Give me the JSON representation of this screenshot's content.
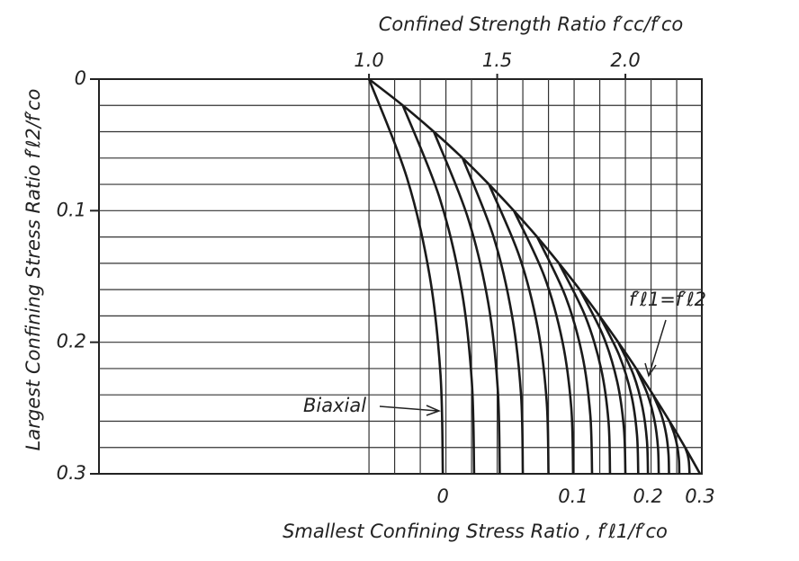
{
  "chart_data": {
    "type": "line",
    "title": "Confined Strength Ratio  f′cc/f′co",
    "ylabel": "Largest Confining Stress Ratio  f′ℓ2/f′co",
    "x2label": "Smallest Confining Stress Ratio , f′ℓ1/f′co",
    "xlim": [
      -0.053,
      2.298
    ],
    "ylim": [
      0,
      0.3
    ],
    "xticks": [
      {
        "value": 1.0,
        "label": "1.0"
      },
      {
        "value": 1.5,
        "label": "1.5"
      },
      {
        "value": 2.0,
        "label": "2.0"
      }
    ],
    "xgrid": [
      1.0,
      1.1,
      1.2,
      1.3,
      1.4,
      1.5,
      1.6,
      1.7,
      1.8,
      1.9,
      2.0,
      2.1,
      2.2
    ],
    "yticks": [
      0,
      0.1,
      0.2,
      0.3
    ],
    "ygrid": [
      0.02,
      0.04,
      0.06,
      0.08,
      0.1,
      0.12,
      0.14,
      0.16,
      0.18,
      0.2,
      0.22,
      0.24,
      0.26,
      0.28
    ],
    "x2ticks": [
      0,
      0.1,
      0.2,
      0.3
    ],
    "grid": true,
    "color": "#1a1a1a",
    "curves": [
      {
        "fl1": 0,
        "x": [
          1.0,
          1.148,
          1.237,
          1.279,
          1.288
        ],
        "y": [
          0,
          0.075,
          0.15,
          0.225,
          0.3
        ]
      },
      {
        "fl1": 0.02,
        "x": [
          1.132,
          1.275,
          1.361,
          1.401,
          1.41
        ],
        "y": [
          0.02,
          0.09,
          0.16,
          0.23,
          0.3
        ]
      },
      {
        "fl1": 0.04,
        "x": [
          1.253,
          1.385,
          1.465,
          1.502,
          1.51
        ],
        "y": [
          0.04,
          0.105,
          0.17,
          0.235,
          0.3
        ]
      },
      {
        "fl1": 0.06,
        "x": [
          1.365,
          1.486,
          1.558,
          1.593,
          1.6
        ],
        "y": [
          0.06,
          0.12,
          0.18,
          0.24,
          0.3
        ]
      },
      {
        "fl1": 0.08,
        "x": [
          1.468,
          1.587,
          1.659,
          1.693,
          1.7
        ],
        "y": [
          0.08,
          0.135,
          0.19,
          0.245,
          0.3
        ]
      },
      {
        "fl1": 0.1,
        "x": [
          1.565,
          1.684,
          1.755,
          1.789,
          1.796
        ],
        "y": [
          0.1,
          0.15,
          0.2,
          0.25,
          0.3
        ]
      },
      {
        "fl1": 0.12,
        "x": [
          1.656,
          1.766,
          1.832,
          1.863,
          1.87
        ],
        "y": [
          0.12,
          0.165,
          0.21,
          0.255,
          0.3
        ]
      },
      {
        "fl1": 0.14,
        "x": [
          1.741,
          1.843,
          1.905,
          1.934,
          1.94
        ],
        "y": [
          0.14,
          0.18,
          0.22,
          0.26,
          0.3
        ]
      },
      {
        "fl1": 0.16,
        "x": [
          1.822,
          1.913,
          1.968,
          1.994,
          2.0
        ],
        "y": [
          0.16,
          0.195,
          0.23,
          0.265,
          0.3
        ]
      },
      {
        "fl1": 0.18,
        "x": [
          1.899,
          1.976,
          2.023,
          2.045,
          2.05
        ],
        "y": [
          0.18,
          0.21,
          0.24,
          0.27,
          0.3
        ]
      },
      {
        "fl1": 0.2,
        "x": [
          1.972,
          2.032,
          2.067,
          2.084,
          2.088
        ],
        "y": [
          0.2,
          0.225,
          0.25,
          0.275,
          0.3
        ]
      },
      {
        "fl1": 0.22,
        "x": [
          2.042,
          2.087,
          2.114,
          2.127,
          2.13
        ],
        "y": [
          0.22,
          0.24,
          0.26,
          0.28,
          0.3
        ]
      },
      {
        "fl1": 0.24,
        "x": [
          2.108,
          2.14,
          2.159,
          2.168,
          2.17
        ],
        "y": [
          0.24,
          0.255,
          0.27,
          0.285,
          0.3
        ]
      },
      {
        "fl1": 0.26,
        "x": [
          2.172,
          2.191,
          2.203,
          2.209,
          2.21
        ],
        "y": [
          0.26,
          0.27,
          0.28,
          0.29,
          0.3
        ]
      },
      {
        "fl1": 0.28,
        "x": [
          2.233,
          2.242,
          2.247,
          2.249,
          2.25
        ],
        "y": [
          0.28,
          0.285,
          0.29,
          0.295,
          0.3
        ]
      },
      {
        "fl1": 0.3,
        "x": [
          2.291
        ],
        "y": [
          0.3
        ]
      }
    ],
    "envelope": {
      "x": [
        1.0,
        1.132,
        1.253,
        1.365,
        1.468,
        1.565,
        1.656,
        1.741,
        1.822,
        1.899,
        1.972,
        2.042,
        2.108,
        2.172,
        2.233,
        2.291
      ],
      "y": [
        0,
        0.02,
        0.04,
        0.06,
        0.08,
        0.1,
        0.12,
        0.14,
        0.16,
        0.18,
        0.2,
        0.22,
        0.24,
        0.26,
        0.28,
        0.3
      ]
    },
    "annotations": [
      "Biaxial",
      "f′ℓ1=f′ℓ2"
    ]
  }
}
